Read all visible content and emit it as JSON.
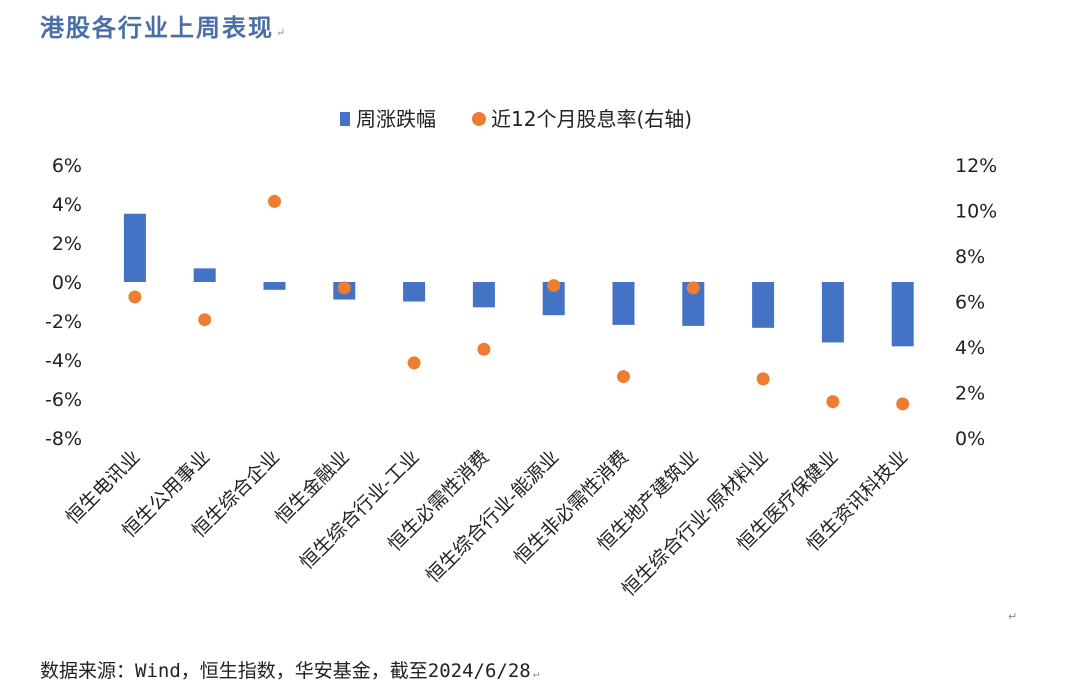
{
  "title": "港股各行业上周表现",
  "source_note": "数据来源：Wind，恒生指数，华安基金，截至2024/6/28",
  "chart_data": {
    "type": "bar+scatter",
    "categories": [
      "恒生电讯业",
      "恒生公用事业",
      "恒生综合企业",
      "恒生金融业",
      "恒生综合行业-工业",
      "恒生必需性消费",
      "恒生综合行业-能源业",
      "恒生非必需性消费",
      "恒生地产建筑业",
      "恒生综合行业-原材料业",
      "恒生医疗保健业",
      "恒生资讯科技业"
    ],
    "series": [
      {
        "name": "周涨跌幅",
        "kind": "bar",
        "axis": "left",
        "color": "#4472c4",
        "values": [
          3.5,
          0.7,
          -0.4,
          -0.9,
          -1.0,
          -1.3,
          -1.7,
          -2.2,
          -2.25,
          -2.35,
          -3.1,
          -3.3
        ]
      },
      {
        "name": "近12个月股息率(右轴)",
        "kind": "scatter",
        "axis": "right",
        "color": "#ed7d31",
        "values": [
          6.2,
          5.2,
          10.4,
          6.6,
          3.3,
          3.9,
          6.7,
          2.7,
          6.6,
          2.6,
          1.6,
          1.5
        ]
      }
    ],
    "left_axis": {
      "min": -8,
      "max": 6,
      "step": 2,
      "ticks": [
        "6%",
        "4%",
        "2%",
        "0%",
        "-2%",
        "-4%",
        "-6%",
        "-8%"
      ]
    },
    "right_axis": {
      "min": 0,
      "max": 12,
      "step": 2,
      "ticks": [
        "12%",
        "10%",
        "8%",
        "6%",
        "4%",
        "2%",
        "0%"
      ]
    },
    "legend_position": "top",
    "grid": false
  }
}
